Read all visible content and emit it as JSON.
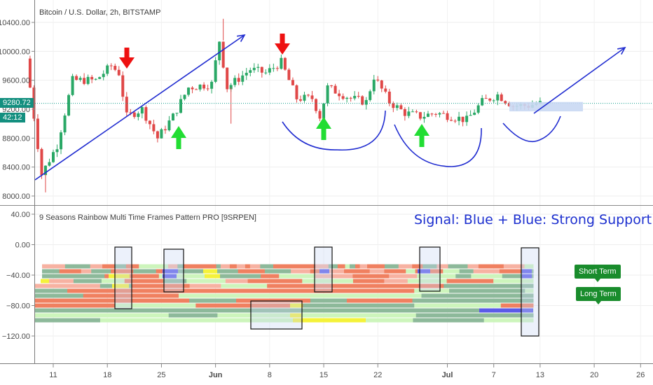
{
  "colors": {
    "candle_up": "#2aa866",
    "candle_down": "#e04848",
    "annotation": "#1f2bd0",
    "arrow_down": "#ee1111",
    "arrow_up": "#22dd33",
    "price_line": "#159f8f",
    "price_tag": "#138f7f",
    "box_fill": "#c9d8f3",
    "badge": "#198c2c"
  },
  "chart_data": [
    {
      "type": "candlestick",
      "title": "Bitcoin / U.S. Dollar, 2h, BITSTAMP",
      "ylim": [
        7950,
        10550
      ],
      "y_ticks": [
        "10400.00",
        "10000.00",
        "9600.00",
        "9200.00",
        "8800.00",
        "8400.00",
        "8000.00"
      ],
      "x_ticks": [
        "11",
        "18",
        "25",
        "Jun",
        "8",
        "15",
        "22",
        "Jul",
        "7",
        "13",
        "20",
        "26"
      ],
      "last_price": "9280.72",
      "countdown": "42:12",
      "price_anchors": [
        {
          "date": "May 08",
          "price": 9900
        },
        {
          "date": "May 10",
          "price": 8300
        },
        {
          "date": "May 12",
          "price": 8700
        },
        {
          "date": "May 14",
          "price": 9600
        },
        {
          "date": "May 17",
          "price": 9600
        },
        {
          "date": "May 19",
          "price": 9800
        },
        {
          "date": "May 20",
          "price": 9700
        },
        {
          "date": "May 21",
          "price": 9100
        },
        {
          "date": "May 23",
          "price": 9200
        },
        {
          "date": "May 25",
          "price": 8800
        },
        {
          "date": "May 27",
          "price": 9100
        },
        {
          "date": "May 29",
          "price": 9500
        },
        {
          "date": "Jun 01",
          "price": 9550
        },
        {
          "date": "Jun 02",
          "price": 10150
        },
        {
          "date": "Jun 03",
          "price": 9500
        },
        {
          "date": "Jun 06",
          "price": 9750
        },
        {
          "date": "Jun 08",
          "price": 9700
        },
        {
          "date": "Jun 10",
          "price": 9850
        },
        {
          "date": "Jun 11",
          "price": 9600
        },
        {
          "date": "Jun 12",
          "price": 9350
        },
        {
          "date": "Jun 14",
          "price": 9350
        },
        {
          "date": "Jun 15",
          "price": 9100
        },
        {
          "date": "Jun 16",
          "price": 9500
        },
        {
          "date": "Jun 19",
          "price": 9350
        },
        {
          "date": "Jun 21",
          "price": 9300
        },
        {
          "date": "Jun 22",
          "price": 9650
        },
        {
          "date": "Jun 24",
          "price": 9300
        },
        {
          "date": "Jun 26",
          "price": 9150
        },
        {
          "date": "Jun 28",
          "price": 9100
        },
        {
          "date": "Jun 30",
          "price": 9150
        },
        {
          "date": "Jul 02",
          "price": 9100
        },
        {
          "date": "Jul 04",
          "price": 9050
        },
        {
          "date": "Jul 06",
          "price": 9300
        },
        {
          "date": "Jul 08",
          "price": 9400
        },
        {
          "date": "Jul 10",
          "price": 9250
        },
        {
          "date": "Jul 12",
          "price": 9250
        },
        {
          "date": "Jul 13",
          "price": 9280
        }
      ],
      "annotations": {
        "down_arrows": [
          "May 20",
          "Jun 10"
        ],
        "up_arrows": [
          "May 26",
          "Jun 15",
          "Jun 28"
        ]
      }
    },
    {
      "type": "heatmap",
      "title": "9 Seasons Rainbow Multi Time Frames Pattern PRO [9SRPEN]",
      "ylim": [
        -130,
        40
      ],
      "y_ticks": [
        "40.00",
        "0.00",
        "−40.00",
        "−80.00",
        "−120.00"
      ],
      "palette": {
        "strong_down": "#f08060",
        "weak_down": "#f7b2a2",
        "weak_up": "#cdf5bc",
        "neutral": "#8db99a",
        "blue": "#5b5be8",
        "yellow": "#f4f23a"
      },
      "rows": 12,
      "signal_boxes": [
        "May 20",
        "May 26",
        "Jun 15",
        "Jun 28",
        "Jul 13"
      ]
    }
  ],
  "overlay": {
    "signal_text": "Signal: Blue + Blue: Strong Support",
    "short_term": "Short Term",
    "long_term": "Long Term"
  }
}
